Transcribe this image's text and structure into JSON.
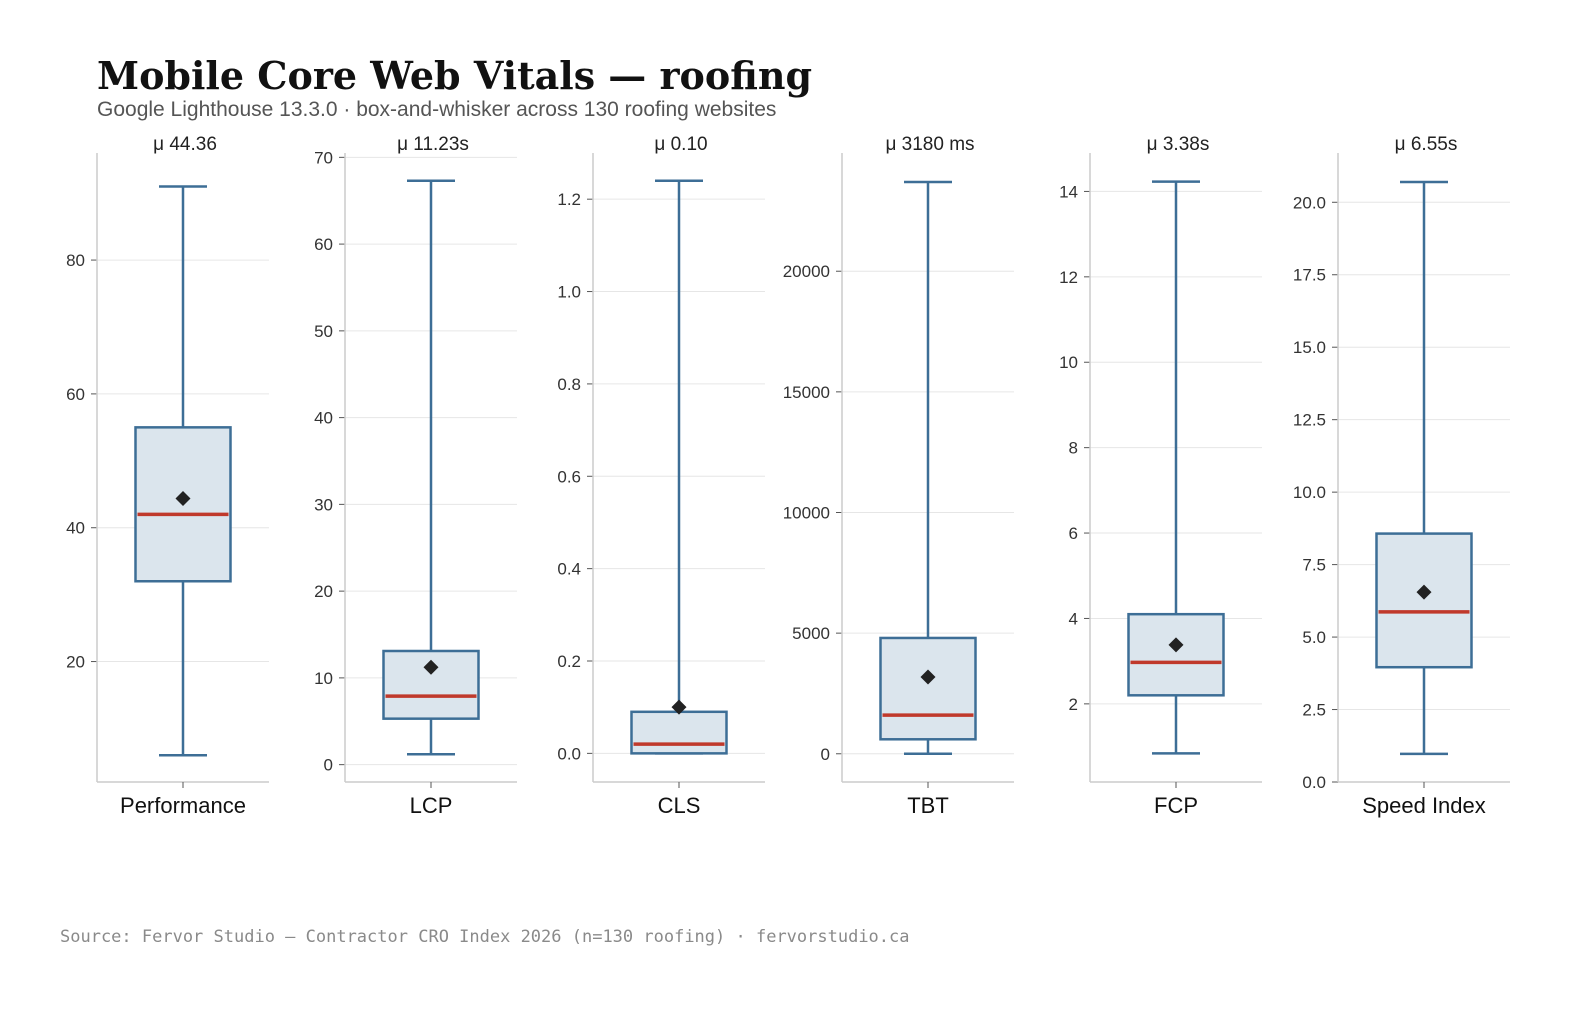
{
  "title": "Mobile Core Web Vitals — roofing",
  "subtitle": "Google Lighthouse 13.3.0 · box-and-whisker across 130 roofing websites",
  "source": "Source: Fervor Studio — Contractor CRO Index 2026 (n=130 roofing) · fervorstudio.ca",
  "colors": {
    "box_fill": "#dbe5ed",
    "box_stroke": "#3d6e96",
    "median": "#c0392b",
    "mean_marker": "#222222",
    "grid": "#e6e6e6",
    "axis": "#cccccc",
    "tick_text": "#333333"
  },
  "chart_data": {
    "type": "box",
    "grid": "horizontal",
    "mean_marker": "diamond",
    "panels": [
      {
        "category": "Performance",
        "mean_label": "μ 44.36",
        "ylim": [
          2,
          96
        ],
        "ticks": [
          20,
          40,
          60,
          80
        ],
        "tick_labels": [
          "20",
          "40",
          "60",
          "80"
        ],
        "whisker_low": 6,
        "q1": 32,
        "median": 42,
        "q3": 55,
        "whisker_high": 91,
        "mean": 44.36
      },
      {
        "category": "LCP",
        "mean_label": "μ 11.23s",
        "ylim": [
          -2,
          70.5
        ],
        "ticks": [
          0,
          10,
          20,
          30,
          40,
          50,
          60,
          70
        ],
        "tick_labels": [
          "0",
          "10",
          "20",
          "30",
          "40",
          "50",
          "60",
          "70"
        ],
        "whisker_low": 1.2,
        "q1": 5.3,
        "median": 7.9,
        "q3": 13.1,
        "whisker_high": 67.3,
        "mean": 11.23
      },
      {
        "category": "CLS",
        "mean_label": "μ 0.10",
        "ylim": [
          -0.062,
          1.3
        ],
        "ticks": [
          0.0,
          0.2,
          0.4,
          0.6,
          0.8,
          1.0,
          1.2
        ],
        "tick_labels": [
          "0.0",
          "0.2",
          "0.4",
          "0.6",
          "0.8",
          "1.0",
          "1.2"
        ],
        "whisker_low": 0.0,
        "q1": 0.0,
        "median": 0.02,
        "q3": 0.09,
        "whisker_high": 1.24,
        "mean": 0.1
      },
      {
        "category": "TBT",
        "mean_label": "μ 3180 ms",
        "ylim": [
          -1170,
          24900
        ],
        "ticks": [
          0,
          5000,
          10000,
          15000,
          20000
        ],
        "tick_labels": [
          "0",
          "5000",
          "10000",
          "15000",
          "20000"
        ],
        "whisker_low": 0,
        "q1": 600,
        "median": 1600,
        "q3": 4800,
        "whisker_high": 23700,
        "mean": 3180
      },
      {
        "category": "FCP",
        "mean_label": "μ 3.38s",
        "ylim": [
          0.17,
          14.9
        ],
        "ticks": [
          2,
          4,
          6,
          8,
          10,
          12,
          14
        ],
        "tick_labels": [
          "2",
          "4",
          "6",
          "8",
          "10",
          "12",
          "14"
        ],
        "whisker_low": 0.84,
        "q1": 2.2,
        "median": 2.97,
        "q3": 4.1,
        "whisker_high": 14.23,
        "mean": 3.38
      },
      {
        "category": "Speed Index",
        "mean_label": "μ 6.55s",
        "ylim": [
          0,
          21.7
        ],
        "ticks": [
          0,
          2.5,
          5,
          7.5,
          10,
          12.5,
          15,
          17.5,
          20
        ],
        "tick_labels": [
          "0.0",
          "2.5",
          "5.0",
          "7.5",
          "10.0",
          "12.5",
          "15.0",
          "17.5",
          "20.0"
        ],
        "whisker_low": 0.97,
        "q1": 3.96,
        "median": 5.87,
        "q3": 8.57,
        "whisker_high": 20.7,
        "mean": 6.55
      }
    ]
  }
}
